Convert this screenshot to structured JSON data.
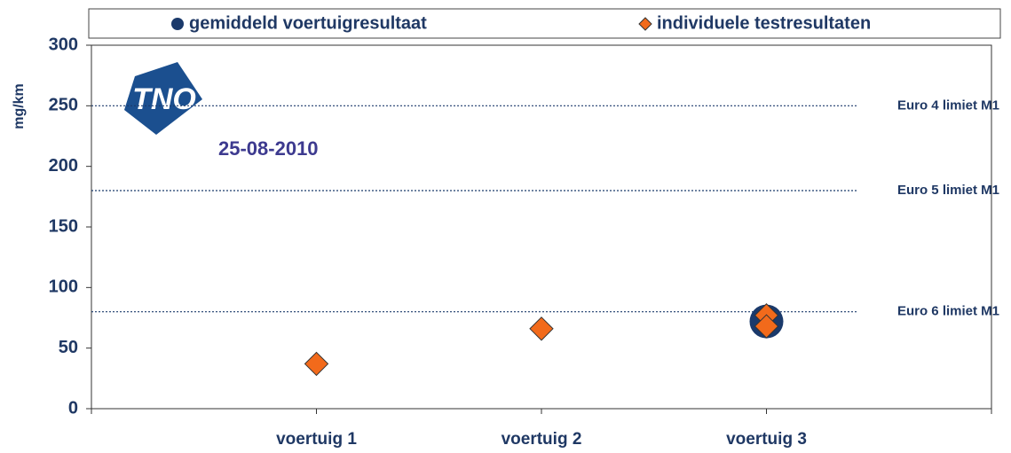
{
  "chart_data": {
    "type": "dot",
    "y_label": "mg/km",
    "annotation": "25-08-2010",
    "logo": "TNO",
    "categories": [
      "voertuig 1",
      "voertuig 2",
      "voertuig 3"
    ],
    "series": [
      {
        "name": "gemiddeld voertuigresultaat",
        "color": "#1b3a6b",
        "marker": "circle",
        "values": [
          null,
          null,
          [
            72
          ]
        ]
      },
      {
        "name": "individuele testresultaten",
        "color": "#f26a1b",
        "marker": "diamond",
        "values": [
          [
            37
          ],
          [
            66
          ],
          [
            77,
            68
          ]
        ]
      }
    ],
    "reference_lines": [
      {
        "label": "Euro 4 limiet M1",
        "value": 250
      },
      {
        "label": "Euro 5 limiet M1",
        "value": 180
      },
      {
        "label": "Euro 6 limiet M1",
        "value": 80
      }
    ],
    "ylim": [
      0,
      300
    ],
    "yticks": [
      0,
      50,
      100,
      150,
      200,
      250,
      300
    ],
    "legend": "top"
  }
}
